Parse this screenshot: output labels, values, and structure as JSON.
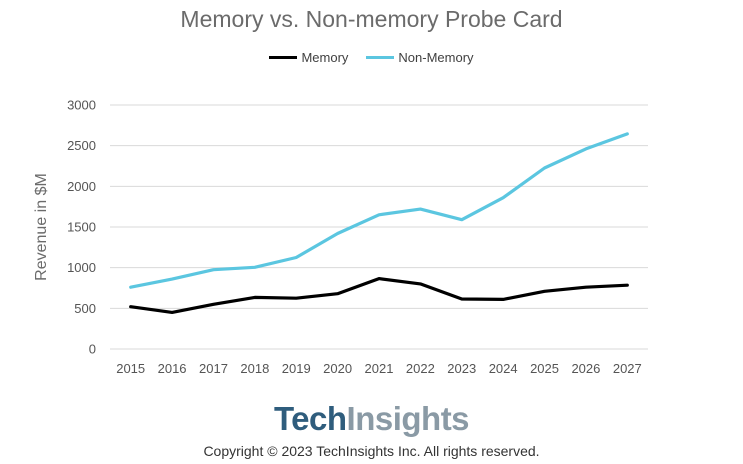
{
  "chart_data": {
    "type": "line",
    "title": "Memory vs. Non-memory Probe Card",
    "xlabel": "",
    "ylabel": "Revenue in $M",
    "categories": [
      "2015",
      "2016",
      "2017",
      "2018",
      "2019",
      "2020",
      "2021",
      "2022",
      "2023",
      "2024",
      "2025",
      "2026",
      "2027"
    ],
    "ylim": [
      0,
      3000
    ],
    "yticks": [
      0,
      500,
      1000,
      1500,
      2000,
      2500,
      3000
    ],
    "grid": true,
    "legend_position": "top-center",
    "series": [
      {
        "name": "Memory",
        "color": "#000000",
        "values": [
          520,
          450,
          550,
          635,
          625,
          680,
          865,
          800,
          615,
          610,
          710,
          760,
          785
        ]
      },
      {
        "name": "Non-Memory",
        "color": "#5bc6e0",
        "values": [
          760,
          860,
          975,
          1005,
          1125,
          1420,
          1650,
          1720,
          1590,
          1860,
          2225,
          2460,
          2645
        ]
      }
    ]
  },
  "branding": {
    "logo_part1": "Tech",
    "logo_part2": "Insights",
    "copyright": "Copyright © 2023 TechInsights Inc.  All rights reserved."
  }
}
